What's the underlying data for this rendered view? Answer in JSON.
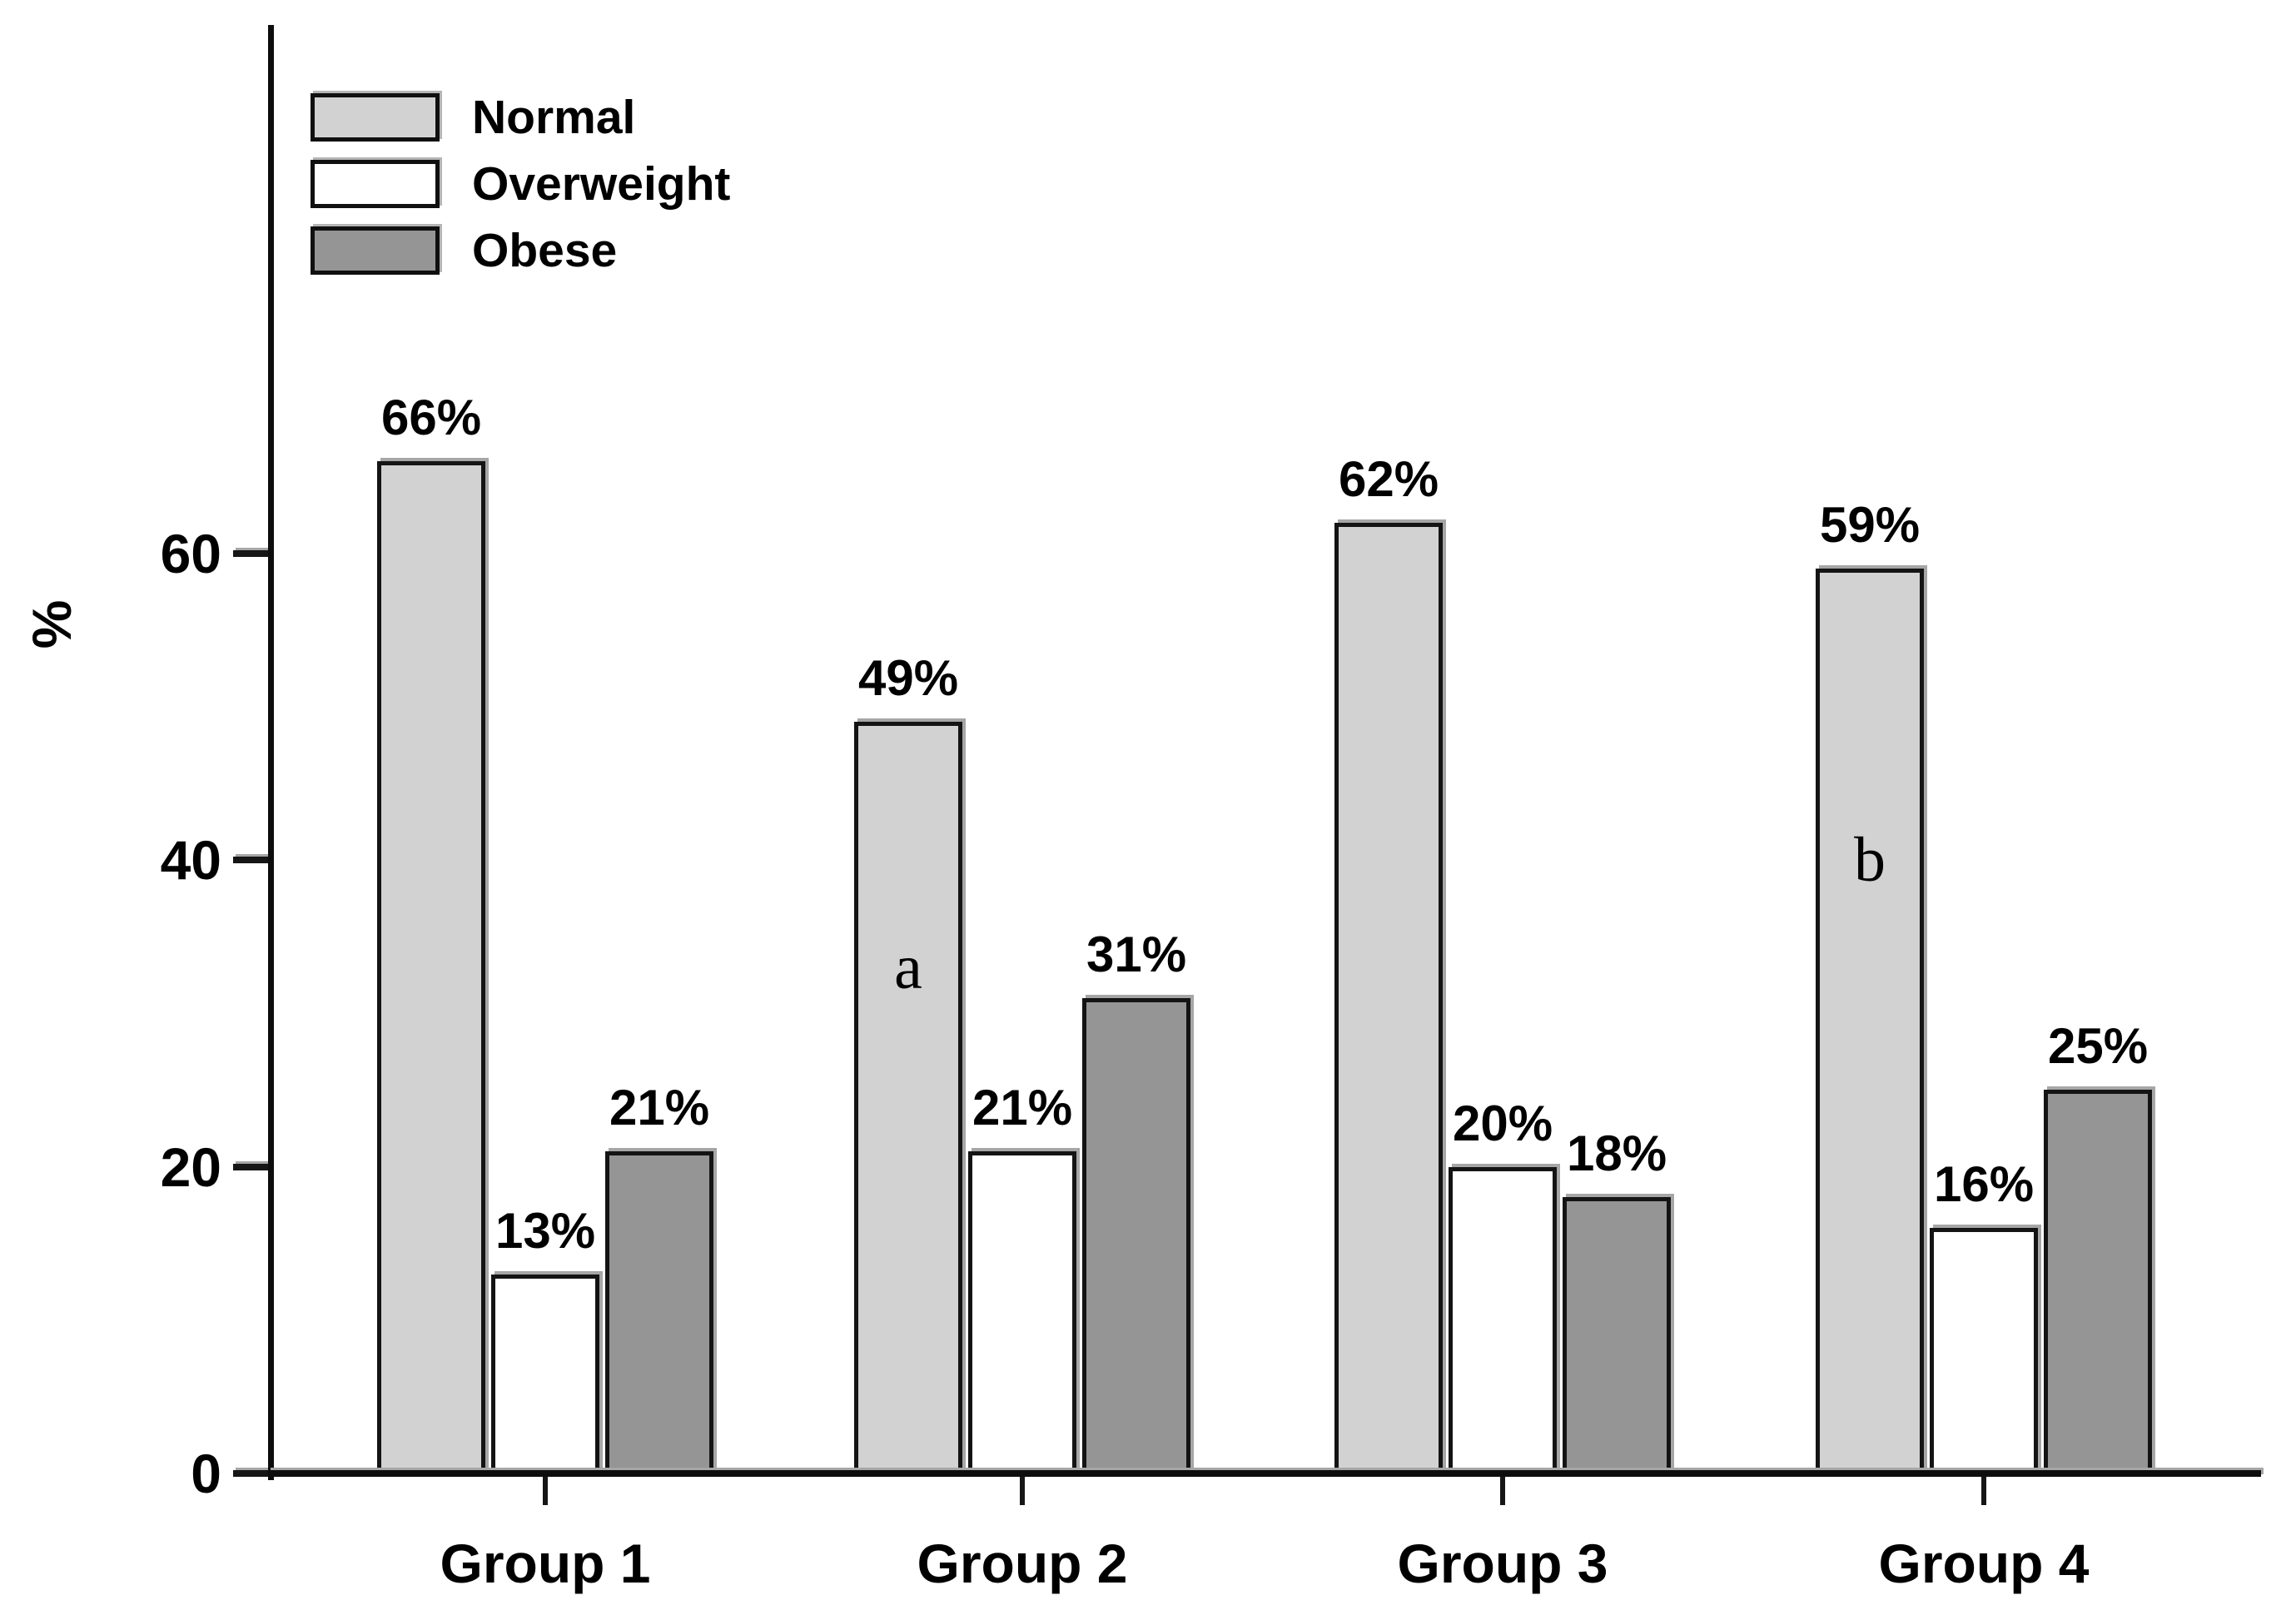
{
  "chart_data": {
    "type": "bar",
    "title": "",
    "xlabel": "",
    "ylabel": "%",
    "categories": [
      "Group 1",
      "Group 2",
      "Group 3",
      "Group 4"
    ],
    "series": [
      {
        "name": "Normal",
        "color": "#d2d2d2",
        "values": [
          66,
          49,
          62,
          59
        ],
        "labels": [
          "66%",
          "49%",
          "62%",
          "59%"
        ]
      },
      {
        "name": "Overweight",
        "color": "#ffffff",
        "values": [
          13,
          21,
          20,
          16
        ],
        "labels": [
          "13%",
          "21%",
          "20%",
          "16%"
        ]
      },
      {
        "name": "Obese",
        "color": "#959595",
        "values": [
          21,
          31,
          18,
          25
        ],
        "labels": [
          "21%",
          "31%",
          "18%",
          "25%"
        ]
      }
    ],
    "yticks": [
      {
        "value": 0,
        "label": "0"
      },
      {
        "value": 20,
        "label": "20"
      },
      {
        "value": 40,
        "label": "40"
      },
      {
        "value": 60,
        "label": "60"
      }
    ],
    "ylim": [
      0,
      78
    ],
    "grid": false,
    "legend_position": "top-left",
    "annotations": [
      {
        "text": "a",
        "category": "Group 2",
        "series": "Normal",
        "y_value": 33
      },
      {
        "text": "b",
        "category": "Group 4",
        "series": "Normal",
        "y_value": 40
      }
    ],
    "colors": {
      "axis": "#0d0d0d",
      "text": "#000000",
      "bar_border": "#141414",
      "shadow": "#a6a6a6",
      "background": "#ffffff"
    }
  }
}
